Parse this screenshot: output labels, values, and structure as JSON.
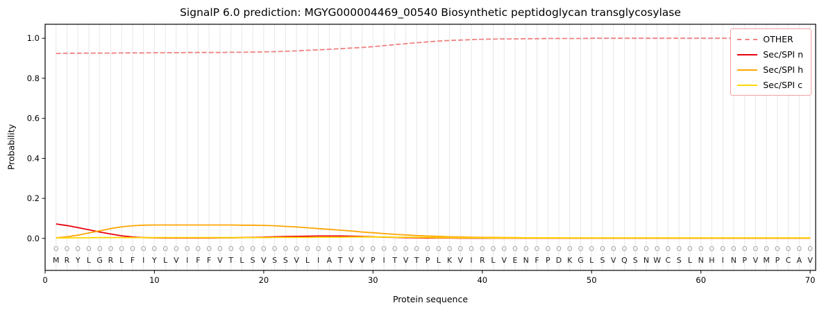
{
  "chart_data": {
    "type": "line",
    "title": "SignalP 6.0 prediction: MGYG000004469_00540 Biosynthetic peptidoglycan transglycosylase",
    "xlabel": "Protein sequence",
    "ylabel": "Probability",
    "xlim": [
      0,
      70.5
    ],
    "ylim": [
      -0.16,
      1.07
    ],
    "xticks": [
      0,
      10,
      20,
      30,
      40,
      50,
      60,
      70
    ],
    "yticks": [
      0.0,
      0.2,
      0.4,
      0.6,
      0.8,
      1.0
    ],
    "grid": true,
    "legend_position": "upper right",
    "n_positions": 70,
    "sequence": "MRYLGRLFIYLVIFFVTLSVSSVLIATVVPITVTPLKVIRLVENFPDKGLSVQSNWCSLNHINPVMPCAV",
    "pred_labels": "OOOOOOOOOOOOOOOOOOOOOOOOOOOOOOOOOOOOOOOOOOOOOOOOOOOOOOOOOOOOOOOOOOOOOO",
    "colors": {
      "grid": "#e7e7e7",
      "frame": "#000000",
      "pred_label": "#999999",
      "sequence_text": "#1a1a1a",
      "legend_border": "#f59f9f"
    },
    "series": [
      {
        "id": "other",
        "name": "OTHER",
        "color": "#f08080",
        "dashed": true,
        "values": [
          0.924,
          0.925,
          0.925,
          0.926,
          0.926,
          0.926,
          0.927,
          0.927,
          0.927,
          0.928,
          0.928,
          0.928,
          0.929,
          0.929,
          0.929,
          0.929,
          0.93,
          0.93,
          0.931,
          0.932,
          0.933,
          0.935,
          0.937,
          0.94,
          0.942,
          0.945,
          0.948,
          0.951,
          0.954,
          0.958,
          0.963,
          0.968,
          0.973,
          0.978,
          0.982,
          0.986,
          0.989,
          0.991,
          0.993,
          0.995,
          0.996,
          0.997,
          0.997,
          0.998,
          0.998,
          0.999,
          0.999,
          0.999,
          0.999,
          1.0,
          1.0,
          1.0,
          1.0,
          1.0,
          1.0,
          1.0,
          1.0,
          1.0,
          1.0,
          1.0,
          1.0,
          1.0,
          1.0,
          1.0,
          1.0,
          1.0,
          1.0,
          1.0,
          1.0,
          1.0
        ]
      },
      {
        "id": "sec-spi-n",
        "name": "Sec/SPI n",
        "color": "#e8000b",
        "dashed": false,
        "values": [
          0.072,
          0.064,
          0.054,
          0.043,
          0.032,
          0.022,
          0.013,
          0.007,
          0.004,
          0.003,
          0.002,
          0.002,
          0.002,
          0.002,
          0.002,
          0.003,
          0.003,
          0.004,
          0.005,
          0.006,
          0.008,
          0.009,
          0.01,
          0.011,
          0.012,
          0.012,
          0.012,
          0.011,
          0.009,
          0.008,
          0.006,
          0.005,
          0.004,
          0.003,
          0.002,
          0.002,
          0.002,
          0.001,
          0.001,
          0.001,
          0.001,
          0.001,
          0.001,
          0.001,
          0.001,
          0.001,
          0.001,
          0.001,
          0.001,
          0.001,
          0.001,
          0.001,
          0.001,
          0.001,
          0.001,
          0.001,
          0.001,
          0.001,
          0.001,
          0.001,
          0.001,
          0.001,
          0.001,
          0.001,
          0.001,
          0.001,
          0.001,
          0.001,
          0.001,
          0.001
        ]
      },
      {
        "id": "sec-spi-h",
        "name": "Sec/SPI h",
        "color": "#ffa500",
        "dashed": false,
        "values": [
          0.003,
          0.008,
          0.016,
          0.027,
          0.038,
          0.049,
          0.058,
          0.063,
          0.066,
          0.067,
          0.067,
          0.067,
          0.067,
          0.067,
          0.067,
          0.067,
          0.067,
          0.066,
          0.066,
          0.065,
          0.063,
          0.06,
          0.057,
          0.053,
          0.049,
          0.045,
          0.041,
          0.037,
          0.032,
          0.028,
          0.024,
          0.02,
          0.017,
          0.014,
          0.012,
          0.01,
          0.008,
          0.007,
          0.006,
          0.005,
          0.005,
          0.004,
          0.004,
          0.003,
          0.003,
          0.003,
          0.003,
          0.002,
          0.002,
          0.002,
          0.002,
          0.002,
          0.002,
          0.002,
          0.002,
          0.002,
          0.002,
          0.002,
          0.002,
          0.002,
          0.002,
          0.002,
          0.002,
          0.002,
          0.002,
          0.002,
          0.002,
          0.002,
          0.002,
          0.002
        ]
      },
      {
        "id": "sec-spi-c",
        "name": "Sec/SPI c",
        "color": "#ffd700",
        "dashed": false,
        "values": [
          0.002,
          0.002,
          0.003,
          0.003,
          0.004,
          0.004,
          0.004,
          0.004,
          0.004,
          0.004,
          0.004,
          0.004,
          0.004,
          0.004,
          0.004,
          0.004,
          0.004,
          0.004,
          0.004,
          0.004,
          0.005,
          0.005,
          0.005,
          0.005,
          0.006,
          0.006,
          0.006,
          0.007,
          0.007,
          0.007,
          0.007,
          0.006,
          0.006,
          0.005,
          0.005,
          0.004,
          0.004,
          0.003,
          0.003,
          0.003,
          0.002,
          0.002,
          0.002,
          0.002,
          0.002,
          0.002,
          0.002,
          0.002,
          0.002,
          0.002,
          0.002,
          0.002,
          0.002,
          0.002,
          0.002,
          0.002,
          0.002,
          0.002,
          0.002,
          0.002,
          0.002,
          0.002,
          0.002,
          0.002,
          0.002,
          0.002,
          0.002,
          0.002,
          0.002,
          0.002
        ]
      }
    ]
  }
}
